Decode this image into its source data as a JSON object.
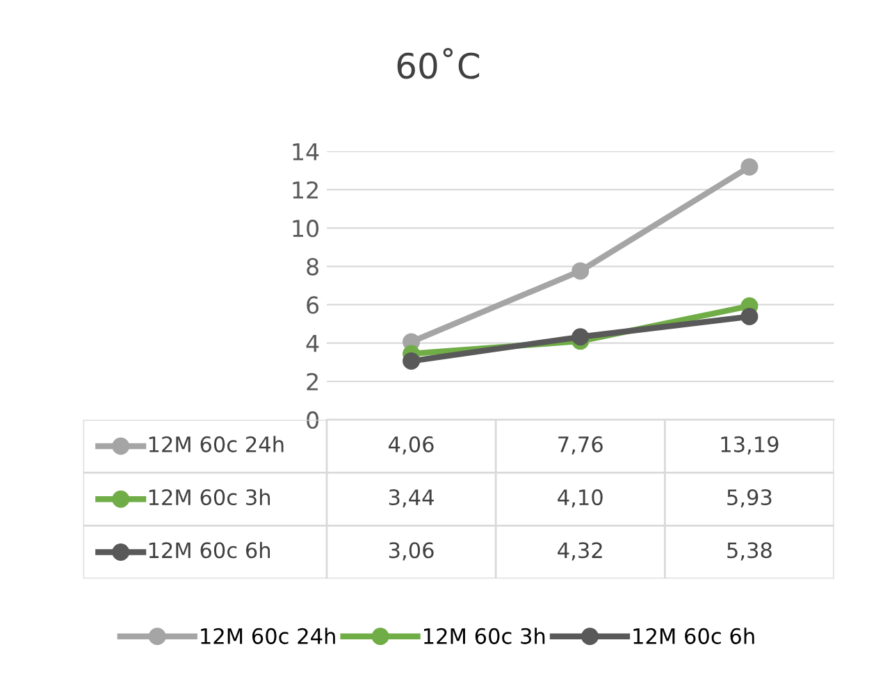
{
  "chart_data": {
    "type": "line",
    "title": "60˚C",
    "categories": [
      null,
      null,
      null
    ],
    "series": [
      {
        "name": "12M 60c 24h",
        "color": "#a5a5a5",
        "values": [
          4.06,
          7.76,
          13.19
        ],
        "value_labels": [
          "4,06",
          "7,76",
          "13,19"
        ]
      },
      {
        "name": "12M 60c 3h",
        "color": "#70ad47",
        "values": [
          3.44,
          4.1,
          5.93
        ],
        "value_labels": [
          "3,44",
          "4,10",
          "5,93"
        ]
      },
      {
        "name": "12M 60c 6h",
        "color": "#595959",
        "values": [
          3.06,
          4.32,
          5.38
        ],
        "value_labels": [
          "3,06",
          "4,32",
          "5,38"
        ]
      }
    ],
    "ylim": [
      0,
      14
    ],
    "yticks": [
      0,
      2,
      4,
      6,
      8,
      10,
      12,
      14
    ],
    "grid": "y",
    "legend": "bottom",
    "marker": "circle",
    "line_style": "solid",
    "tick_labels": "y"
  }
}
